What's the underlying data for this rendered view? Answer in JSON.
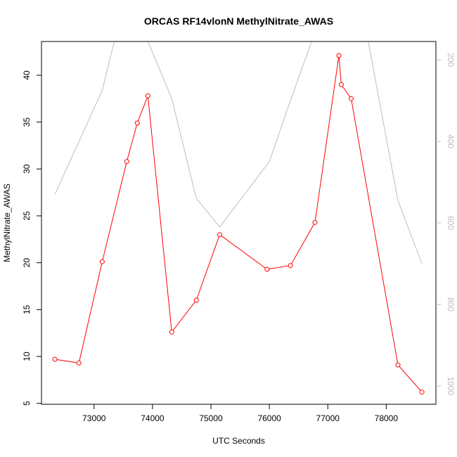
{
  "chart_data": {
    "type": "line",
    "title": "ORCAS RF14vlonN MethylNitrate_AWAS",
    "xlabel": "UTC Seconds",
    "ylabel": "MethylNitrate_AWAS",
    "xlim": [
      72100,
      78850
    ],
    "ylim": [
      4.9,
      43.6
    ],
    "y2lim": [
      1045,
      155
    ],
    "x_ticks": [
      73000,
      74000,
      75000,
      76000,
      77000,
      78000
    ],
    "y_ticks": [
      5,
      10,
      15,
      20,
      25,
      30,
      35,
      40
    ],
    "y2_ticks": [
      200,
      400,
      600,
      800,
      1000
    ],
    "series": [
      {
        "color": "#ff0000",
        "axis": "left",
        "marker": "open-circle",
        "x": [
          72330,
          72740,
          73140,
          73560,
          73740,
          73920,
          74330,
          74750,
          75150,
          75960,
          76360,
          76780,
          77190,
          77230,
          77400,
          78200,
          78610
        ],
        "y": [
          9.7,
          9.3,
          20.1,
          30.8,
          34.9,
          37.8,
          12.6,
          16.0,
          23.0,
          19.3,
          19.7,
          24.3,
          42.1,
          39.0,
          37.5,
          9.1,
          6.2
        ]
      },
      {
        "color": "#bebebe",
        "axis": "right",
        "marker": "none",
        "x": [
          72330,
          73140,
          73560,
          74330,
          74750,
          75150,
          76000,
          76360,
          76760,
          77160,
          77620,
          78200,
          78610
        ],
        "y": [
          530,
          275,
          30,
          295,
          540,
          610,
          450,
          300,
          140,
          -30,
          100,
          545,
          700
        ]
      }
    ]
  }
}
